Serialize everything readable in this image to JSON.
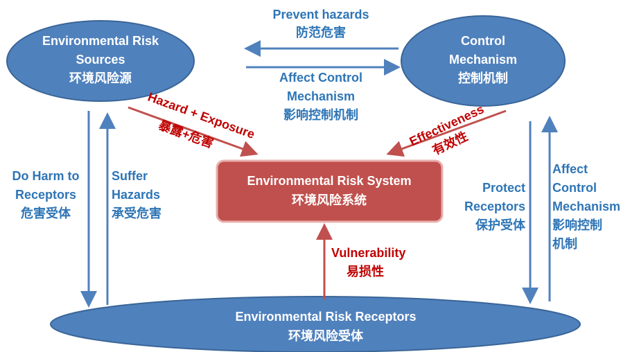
{
  "nodes": [
    {
      "lines": [
        "Environmental Risk",
        "Sources",
        "环境风险源"
      ]
    },
    {
      "lines": [
        "Control",
        "Mechanism",
        "控制机制"
      ]
    },
    {
      "lines": [
        "Environmental Risk System",
        "环境风险系统"
      ]
    },
    {
      "lines": [
        "Environmental Risk Receptors",
        "环境风险受体"
      ]
    }
  ],
  "edges": [
    {
      "lines": [
        "Prevent hazards",
        "防范危害"
      ]
    },
    {
      "lines": [
        "Affect Control",
        "Mechanism",
        "影响控制机制"
      ]
    },
    {
      "lines": [
        "Hazard + Exposure",
        "暴露+危害"
      ]
    },
    {
      "lines": [
        "Effectiveness",
        "有效性"
      ]
    },
    {
      "lines": [
        "Do Harm to",
        "Receptors",
        "危害受体"
      ]
    },
    {
      "lines": [
        "Suffer",
        "Hazards",
        "承受危害"
      ]
    },
    {
      "lines": [
        "Protect",
        "Receptors",
        "保护受体"
      ]
    },
    {
      "lines": [
        "Affect",
        "Control",
        "Mechanism",
        "影响控制",
        "机制"
      ]
    },
    {
      "lines": [
        "Vulnerability",
        "易损性"
      ]
    }
  ]
}
